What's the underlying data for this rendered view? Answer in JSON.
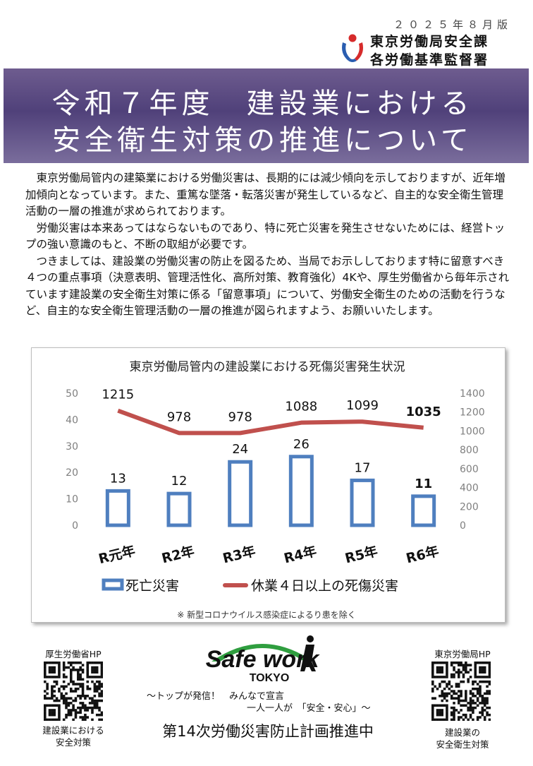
{
  "header": {
    "date": "２０２５年８月版",
    "org_line1": "東京労働局安全課",
    "org_line2": "各労働基準監督署"
  },
  "banner": {
    "line1": "令和７年度　建設業における",
    "line2": "安全衛生対策の推進について"
  },
  "body": {
    "p1": "東京労働局管内の建築業における労働災害は、長期的には減少傾向を示しておりますが、近年増加傾向となっています。また、重篤な墜落・転落災害が発生しているなど、自主的な安全衛生管理活動の一層の推進が求められております。",
    "p2": "労働災害は本来あってはならないものであり、特に死亡災害を発生させないためには、経営トップの強い意識のもと、不断の取組が必要です。",
    "p3": "つきましては、建設業の労働災害の防止を図るため、当局でお示ししております特に留意すべき４つの重点事項（決意表明、管理活性化、高所対策、教育強化）4Kや、厚生労働省から毎年示されています建設業の安全衛生対策に係る「留意事項」について、労働安全衛生のための活動を行うなど、自主的な安全衛生管理活動の一層の推進が図られますよう、お願いいたします。"
  },
  "chart_data": {
    "type": "bar",
    "title": "東京労働局管内の建設業における死傷災害発生状況",
    "categories": [
      "R元年",
      "R2年",
      "R3年",
      "R4年",
      "R5年",
      "R6年"
    ],
    "series": [
      {
        "name": "死亡災害",
        "type": "bar",
        "axis": "left",
        "values": [
          13,
          12,
          24,
          26,
          17,
          11
        ],
        "color": "#4f7fbf"
      },
      {
        "name": "休業４日以上の死傷災害",
        "type": "line",
        "axis": "right",
        "values": [
          1215,
          978,
          978,
          1088,
          1099,
          1035
        ],
        "color": "#c0504d"
      }
    ],
    "ylim_left": [
      0,
      50
    ],
    "yticks_left": [
      "0",
      "10",
      "20",
      "30",
      "40",
      "50"
    ],
    "ylim_right": [
      0,
      1400
    ],
    "yticks_right": [
      "0",
      "200",
      "400",
      "600",
      "800",
      "1000",
      "1200",
      "1400"
    ],
    "legend": "bottom",
    "grid": false,
    "note": "※ 新型コロナウイルス感染症によるり患を除く"
  },
  "footer": {
    "left_hp": "厚生労働省HP",
    "left_label1": "建設業における",
    "left_label2": "安全対策",
    "right_hp": "東京労働局HP",
    "right_label1": "建設業の",
    "right_label2": "安全衛生対策",
    "logo_text": "Safe work",
    "logo_sub": "TOKYO",
    "slogan1": "～トップが発信！　みんなで宣言",
    "slogan2": "一人一人が　「安全・安心」～",
    "main": "第14次労働災害防止計画推進中"
  }
}
